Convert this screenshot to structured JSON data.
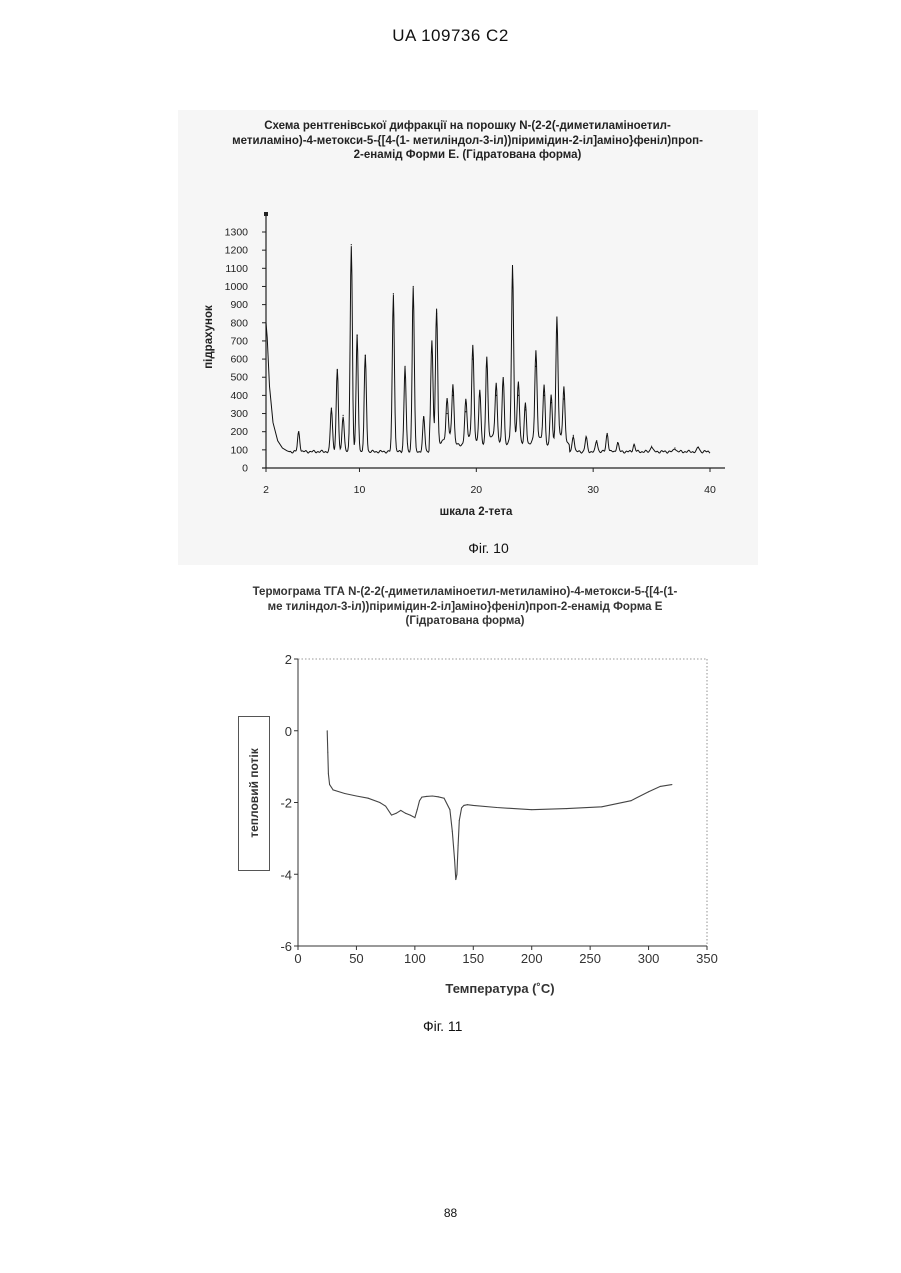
{
  "header": {
    "patent_id": "UA   109736   C2"
  },
  "page_number": "88",
  "figures": {
    "fig10": {
      "title_lines": [
        "Схема рентгенівської дифракції на порошку N-(2-2(-диметиламіноетил-",
        "метиламіно)-4-метокси-5-{[4-(1- метиліндол-3-іл))піримідин-2-іл]аміно}феніл)проп-",
        "2-енамід Форми Е. (Гідратована форма)"
      ],
      "caption": "Фіг. 10"
    },
    "fig11": {
      "title_lines": [
        "Термограма ТГА N-(2-2(-диметиламіноетил-метиламіно)-4-метокси-5-{[4-(1-",
        "ме  тиліндол-3-іл))піримідин-2-іл]аміно}феніл)проп-2-енамід Форма Е",
        "(Гідратована форма)"
      ],
      "caption": "Фіг. 11"
    }
  },
  "chart_data": [
    {
      "type": "line",
      "xlabel": "шкала 2-тета",
      "ylabel": "підрахунок",
      "xlim": [
        2,
        40
      ],
      "ylim": [
        0,
        1300
      ],
      "xticks": [
        2,
        10,
        20,
        30,
        40
      ],
      "yticks": [
        0,
        100,
        200,
        300,
        400,
        500,
        600,
        700,
        800,
        900,
        1000,
        1100,
        1200,
        1300
      ],
      "grid": false,
      "baseline": 90,
      "start": {
        "x": [
          2.0,
          2.1,
          2.3,
          2.6,
          3.0,
          3.4,
          3.8
        ],
        "y": [
          800,
          720,
          450,
          250,
          150,
          110,
          95
        ]
      },
      "peaks": [
        {
          "x": 4.8,
          "y": 200
        },
        {
          "x": 7.6,
          "y": 330
        },
        {
          "x": 8.1,
          "y": 540
        },
        {
          "x": 8.6,
          "y": 290
        },
        {
          "x": 9.3,
          "y": 1230
        },
        {
          "x": 9.8,
          "y": 730
        },
        {
          "x": 10.5,
          "y": 620
        },
        {
          "x": 12.9,
          "y": 960
        },
        {
          "x": 13.9,
          "y": 560
        },
        {
          "x": 14.6,
          "y": 1000
        },
        {
          "x": 15.5,
          "y": 280
        },
        {
          "x": 16.2,
          "y": 640
        },
        {
          "x": 16.6,
          "y": 850
        },
        {
          "x": 17.5,
          "y": 300
        },
        {
          "x": 18.0,
          "y": 400
        },
        {
          "x": 19.1,
          "y": 310
        },
        {
          "x": 19.7,
          "y": 600
        },
        {
          "x": 20.3,
          "y": 400
        },
        {
          "x": 20.9,
          "y": 560
        },
        {
          "x": 21.7,
          "y": 400
        },
        {
          "x": 22.3,
          "y": 470
        },
        {
          "x": 23.1,
          "y": 1040
        },
        {
          "x": 23.6,
          "y": 400
        },
        {
          "x": 24.2,
          "y": 320
        },
        {
          "x": 25.1,
          "y": 560
        },
        {
          "x": 25.8,
          "y": 400
        },
        {
          "x": 26.4,
          "y": 360
        },
        {
          "x": 26.9,
          "y": 760
        },
        {
          "x": 27.5,
          "y": 380
        },
        {
          "x": 28.3,
          "y": 180
        },
        {
          "x": 29.4,
          "y": 170
        },
        {
          "x": 30.3,
          "y": 150
        },
        {
          "x": 31.2,
          "y": 190
        },
        {
          "x": 32.1,
          "y": 140
        },
        {
          "x": 33.5,
          "y": 130
        },
        {
          "x": 35.0,
          "y": 120
        },
        {
          "x": 37.0,
          "y": 110
        },
        {
          "x": 39.0,
          "y": 115
        }
      ]
    },
    {
      "type": "line",
      "xlabel": "Температура (˚C)",
      "ylabel": "тепловий потік",
      "xlim": [
        0,
        350
      ],
      "ylim": [
        -6,
        2
      ],
      "xticks": [
        0,
        50,
        100,
        150,
        200,
        250,
        300,
        350
      ],
      "yticks": [
        -6,
        -4,
        -2,
        0,
        2
      ],
      "grid": false,
      "series": [
        {
          "x": [
            25,
            25.5,
            26,
            27,
            30,
            40,
            50,
            60,
            70,
            75,
            80,
            84,
            88,
            92,
            96,
            100,
            102,
            104,
            106,
            110,
            115,
            120,
            125,
            130,
            132,
            134,
            135,
            136,
            137,
            138,
            140,
            142,
            145,
            150,
            170,
            200,
            230,
            260,
            285,
            300,
            310,
            320
          ],
          "y": [
            0.0,
            -0.6,
            -1.2,
            -1.5,
            -1.65,
            -1.75,
            -1.82,
            -1.88,
            -2.0,
            -2.1,
            -2.35,
            -2.3,
            -2.22,
            -2.3,
            -2.35,
            -2.42,
            -2.2,
            -1.95,
            -1.85,
            -1.83,
            -1.82,
            -1.84,
            -1.88,
            -2.2,
            -2.8,
            -3.6,
            -4.15,
            -4.0,
            -3.2,
            -2.5,
            -2.15,
            -2.08,
            -2.06,
            -2.08,
            -2.14,
            -2.2,
            -2.17,
            -2.12,
            -1.95,
            -1.7,
            -1.55,
            -1.5
          ]
        }
      ]
    }
  ]
}
